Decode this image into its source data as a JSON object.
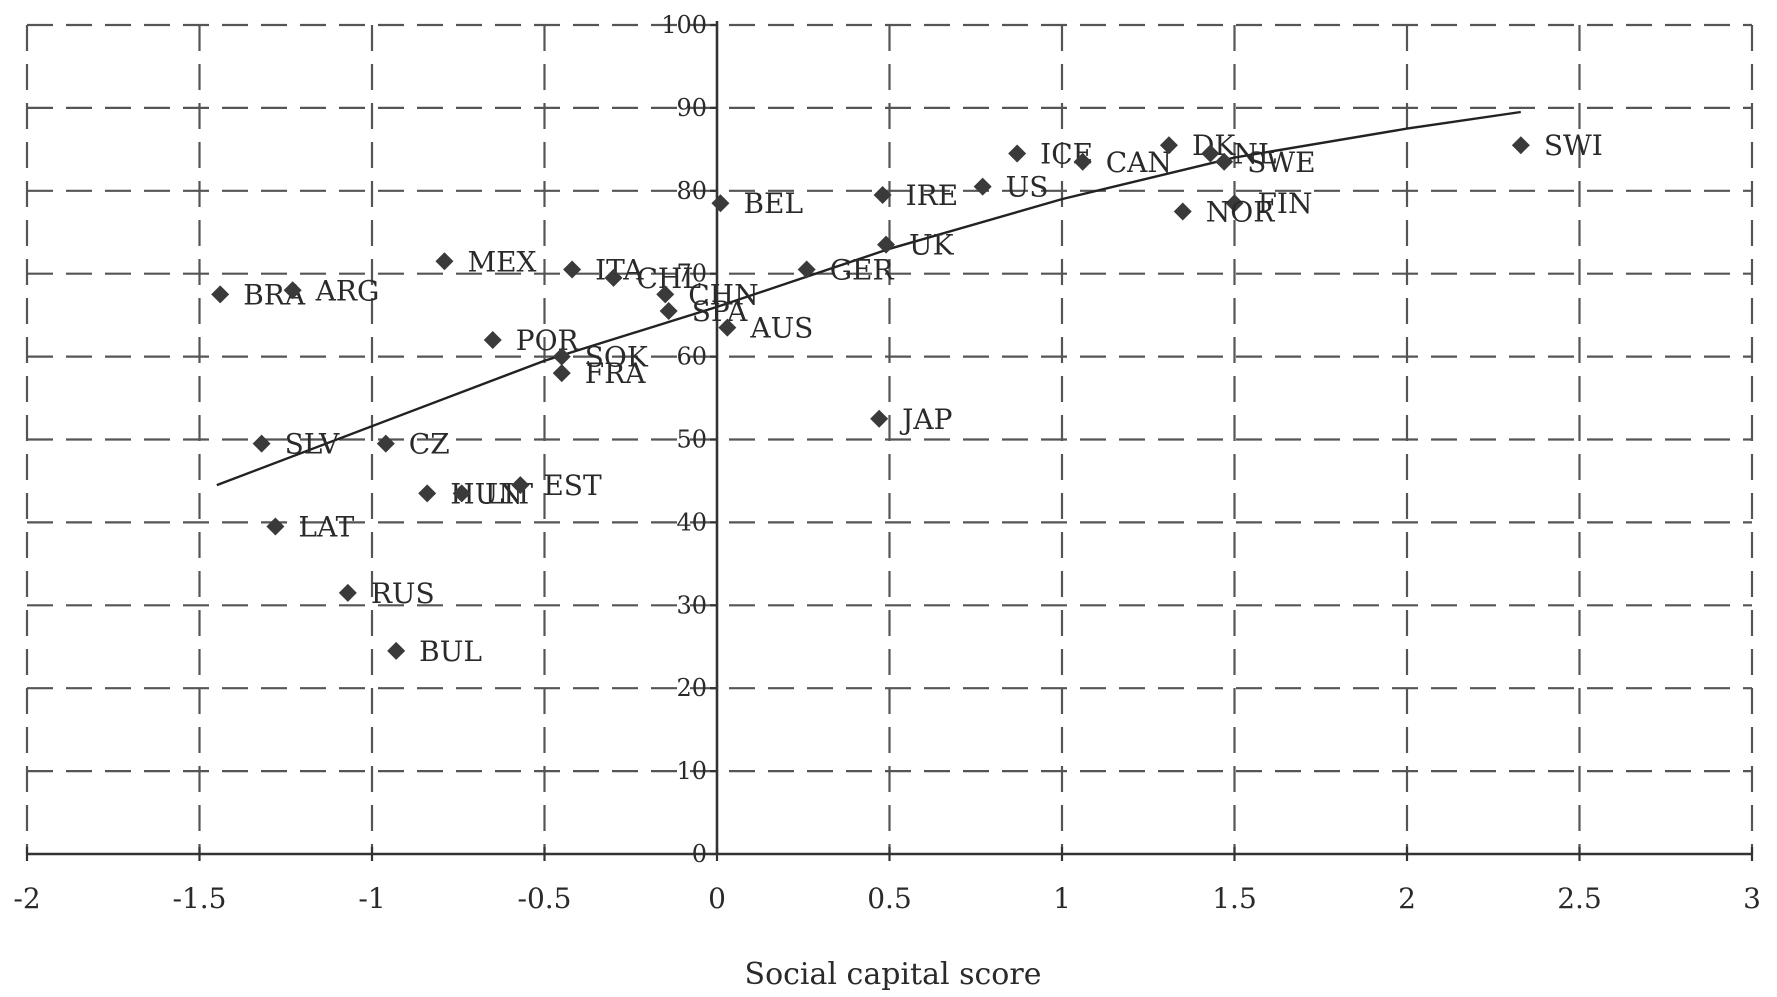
{
  "chart_data": {
    "type": "scatter",
    "title": "",
    "xlabel": "Social capital score",
    "ylabel": "",
    "xlim": [
      -2,
      3
    ],
    "ylim": [
      0,
      100
    ],
    "x_ticks": [
      -2,
      -1.5,
      -1,
      -0.5,
      0,
      0.5,
      1,
      1.5,
      2,
      2.5,
      3
    ],
    "x_tick_labels": [
      "-2",
      "-1.5",
      "-1",
      "-0.5",
      "0",
      "0.5",
      "1",
      "1.5",
      "2",
      "2.5",
      "3"
    ],
    "y_ticks": [
      0,
      10,
      20,
      30,
      40,
      50,
      60,
      70,
      80,
      90,
      100
    ],
    "y_tick_labels": [
      "0",
      "10",
      "20",
      "30",
      "40",
      "50",
      "60",
      "70",
      "80",
      "90",
      "100"
    ],
    "grid": true,
    "legend": "none",
    "marker_color": "#3a3a3a",
    "points": [
      {
        "label": "BRA",
        "x": -1.44,
        "y": 67.5
      },
      {
        "label": "ARG",
        "x": -1.23,
        "y": 68
      },
      {
        "label": "MEX",
        "x": -0.79,
        "y": 71.5
      },
      {
        "label": "ITA",
        "x": -0.42,
        "y": 70.5
      },
      {
        "label": "CHL",
        "x": -0.3,
        "y": 69.5
      },
      {
        "label": "CHN",
        "x": -0.15,
        "y": 67.5
      },
      {
        "label": "SPA",
        "x": -0.14,
        "y": 65.5
      },
      {
        "label": "BEL",
        "x": 0.01,
        "y": 78.5
      },
      {
        "label": "AUS",
        "x": 0.03,
        "y": 63.5
      },
      {
        "label": "POR",
        "x": -0.65,
        "y": 62
      },
      {
        "label": "SOK",
        "x": -0.45,
        "y": 60
      },
      {
        "label": "FRA",
        "x": -0.45,
        "y": 58
      },
      {
        "label": "SLV",
        "x": -1.32,
        "y": 49.5
      },
      {
        "label": "CZ",
        "x": -0.96,
        "y": 49.5
      },
      {
        "label": "HUN",
        "x": -0.84,
        "y": 43.5
      },
      {
        "label": "LIT",
        "x": -0.74,
        "y": 43.5
      },
      {
        "label": "EST",
        "x": -0.57,
        "y": 44.5
      },
      {
        "label": "LAT",
        "x": -1.28,
        "y": 39.5
      },
      {
        "label": "RUS",
        "x": -1.07,
        "y": 31.5
      },
      {
        "label": "BUL",
        "x": -0.93,
        "y": 24.5
      },
      {
        "label": "GER",
        "x": 0.26,
        "y": 70.5
      },
      {
        "label": "UK",
        "x": 0.49,
        "y": 73.5
      },
      {
        "label": "IRE",
        "x": 0.48,
        "y": 79.5
      },
      {
        "label": "US",
        "x": 0.77,
        "y": 80.5
      },
      {
        "label": "ICE",
        "x": 0.87,
        "y": 84.5
      },
      {
        "label": "CAN",
        "x": 1.06,
        "y": 83.5
      },
      {
        "label": "DK",
        "x": 1.31,
        "y": 85.5
      },
      {
        "label": "NL",
        "x": 1.43,
        "y": 84.5
      },
      {
        "label": "SWE",
        "x": 1.47,
        "y": 83.5
      },
      {
        "label": "FIN",
        "x": 1.5,
        "y": 78.5
      },
      {
        "label": "NOR",
        "x": 1.35,
        "y": 77.5
      },
      {
        "label": "JAP",
        "x": 0.47,
        "y": 52.5
      },
      {
        "label": "SWI",
        "x": 2.33,
        "y": 85.5
      }
    ],
    "trendline": [
      {
        "x": -1.45,
        "y": 44.5
      },
      {
        "x": -0.5,
        "y": 59.5
      },
      {
        "x": 0,
        "y": 66
      },
      {
        "x": 0.5,
        "y": 73
      },
      {
        "x": 1.0,
        "y": 79
      },
      {
        "x": 1.5,
        "y": 84
      },
      {
        "x": 2.0,
        "y": 87.5
      },
      {
        "x": 2.33,
        "y": 89.5
      }
    ]
  }
}
